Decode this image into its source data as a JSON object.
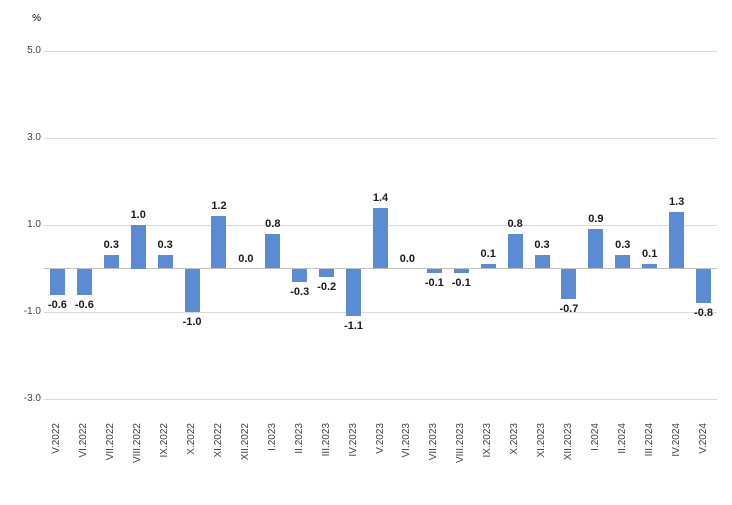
{
  "chart_data": {
    "type": "bar",
    "title": "",
    "unit_label": "%",
    "xlabel": "",
    "ylabel": "%",
    "categories": [
      "V.2022",
      "VI.2022",
      "VII.2022",
      "VIII.2022",
      "IX.2022",
      "X.2022",
      "XI.2022",
      "XII.2022",
      "I.2023",
      "II.2023",
      "III.2023",
      "IV.2023",
      "V.2023",
      "VI.2023",
      "VII.2023",
      "VIII.2023",
      "IX.2023",
      "X.2023",
      "XI.2023",
      "XII.2023",
      "I.2024",
      "II.2024",
      "III.2024",
      "IV.2024",
      "V.2024"
    ],
    "values": [
      -0.6,
      -0.6,
      0.3,
      1.0,
      0.3,
      -1.0,
      1.2,
      0.0,
      0.8,
      -0.3,
      -0.2,
      -1.1,
      1.4,
      0.0,
      -0.1,
      -0.1,
      0.1,
      0.8,
      0.3,
      -0.7,
      0.9,
      0.3,
      0.1,
      1.3,
      -0.8
    ],
    "y_ticks": [
      5.0,
      3.0,
      1.0,
      -1.0,
      -3.0
    ],
    "ylim": [
      -3.0,
      5.0
    ],
    "grid": true,
    "legend": "none",
    "bar_color": "#5B8BD2",
    "gridline_color": "#D9D9D9",
    "zero_line_color": "#C0C0C0",
    "value_label_color": "#1a1a1a",
    "tick_label_color": "#404040"
  }
}
